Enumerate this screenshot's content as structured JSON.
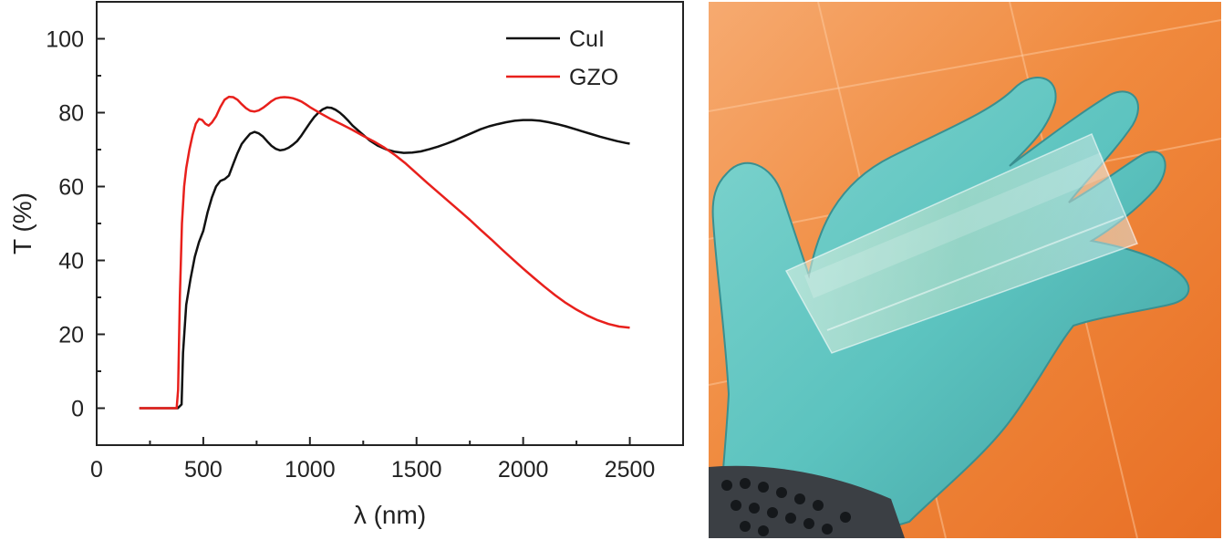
{
  "chart_data": {
    "type": "line",
    "xlabel": "λ (nm)",
    "ylabel": "T (%)",
    "xlim": [
      0,
      2750
    ],
    "ylim": [
      -10,
      110
    ],
    "x_ticks": [
      0,
      500,
      1000,
      1500,
      2000,
      2500
    ],
    "y_ticks": [
      0,
      20,
      40,
      60,
      80,
      100
    ],
    "grid": false,
    "legend_position": "top-right",
    "series": [
      {
        "name": "CuI",
        "color": "#111111",
        "points": [
          [
            200,
            0
          ],
          [
            380,
            0
          ],
          [
            398,
            1
          ],
          [
            405,
            15
          ],
          [
            420,
            28
          ],
          [
            440,
            35
          ],
          [
            460,
            41
          ],
          [
            480,
            45
          ],
          [
            500,
            48
          ],
          [
            520,
            53
          ],
          [
            540,
            57
          ],
          [
            560,
            60
          ],
          [
            580,
            61.5
          ],
          [
            600,
            62
          ],
          [
            620,
            63
          ],
          [
            640,
            66
          ],
          [
            660,
            69
          ],
          [
            680,
            71.5
          ],
          [
            700,
            73
          ],
          [
            720,
            74.3
          ],
          [
            740,
            74.8
          ],
          [
            760,
            74.4
          ],
          [
            780,
            73.5
          ],
          [
            800,
            72.2
          ],
          [
            820,
            71
          ],
          [
            840,
            70.2
          ],
          [
            860,
            69.8
          ],
          [
            880,
            70
          ],
          [
            900,
            70.5
          ],
          [
            920,
            71.3
          ],
          [
            940,
            72.3
          ],
          [
            960,
            73.8
          ],
          [
            980,
            75.5
          ],
          [
            1000,
            77.2
          ],
          [
            1020,
            78.8
          ],
          [
            1040,
            80
          ],
          [
            1060,
            80.9
          ],
          [
            1080,
            81.4
          ],
          [
            1100,
            81.3
          ],
          [
            1120,
            80.8
          ],
          [
            1140,
            80
          ],
          [
            1160,
            79
          ],
          [
            1180,
            77.8
          ],
          [
            1200,
            76.5
          ],
          [
            1240,
            74.5
          ],
          [
            1280,
            72.5
          ],
          [
            1320,
            71
          ],
          [
            1360,
            70
          ],
          [
            1400,
            69.4
          ],
          [
            1440,
            69.1
          ],
          [
            1480,
            69.2
          ],
          [
            1520,
            69.5
          ],
          [
            1560,
            70.1
          ],
          [
            1600,
            70.8
          ],
          [
            1640,
            71.6
          ],
          [
            1680,
            72.5
          ],
          [
            1720,
            73.5
          ],
          [
            1760,
            74.5
          ],
          [
            1800,
            75.5
          ],
          [
            1840,
            76.3
          ],
          [
            1880,
            76.9
          ],
          [
            1920,
            77.4
          ],
          [
            1960,
            77.8
          ],
          [
            2000,
            78
          ],
          [
            2040,
            78
          ],
          [
            2080,
            77.8
          ],
          [
            2120,
            77.4
          ],
          [
            2160,
            76.9
          ],
          [
            2200,
            76.3
          ],
          [
            2240,
            75.6
          ],
          [
            2280,
            74.9
          ],
          [
            2320,
            74.2
          ],
          [
            2360,
            73.5
          ],
          [
            2400,
            72.9
          ],
          [
            2440,
            72.3
          ],
          [
            2480,
            71.8
          ],
          [
            2500,
            71.6
          ]
        ]
      },
      {
        "name": "GZO",
        "color": "#e8201c",
        "points": [
          [
            200,
            0
          ],
          [
            375,
            0
          ],
          [
            382,
            5
          ],
          [
            390,
            30
          ],
          [
            400,
            50
          ],
          [
            410,
            60
          ],
          [
            420,
            65
          ],
          [
            435,
            70
          ],
          [
            450,
            74
          ],
          [
            465,
            77
          ],
          [
            480,
            78.3
          ],
          [
            495,
            78
          ],
          [
            510,
            77
          ],
          [
            525,
            76.5
          ],
          [
            540,
            77.3
          ],
          [
            560,
            79
          ],
          [
            580,
            81.5
          ],
          [
            600,
            83.5
          ],
          [
            620,
            84.3
          ],
          [
            640,
            84.2
          ],
          [
            660,
            83.5
          ],
          [
            680,
            82.3
          ],
          [
            700,
            81.2
          ],
          [
            720,
            80.5
          ],
          [
            740,
            80.3
          ],
          [
            760,
            80.6
          ],
          [
            780,
            81.3
          ],
          [
            800,
            82.2
          ],
          [
            820,
            83.1
          ],
          [
            840,
            83.8
          ],
          [
            860,
            84.1
          ],
          [
            880,
            84.2
          ],
          [
            900,
            84.1
          ],
          [
            920,
            83.9
          ],
          [
            940,
            83.5
          ],
          [
            960,
            83
          ],
          [
            980,
            82.3
          ],
          [
            1000,
            81.5
          ],
          [
            1050,
            79.8
          ],
          [
            1100,
            78.2
          ],
          [
            1150,
            76.8
          ],
          [
            1200,
            75.3
          ],
          [
            1250,
            73.7
          ],
          [
            1300,
            72.2
          ],
          [
            1350,
            70.5
          ],
          [
            1400,
            68.5
          ],
          [
            1450,
            66.2
          ],
          [
            1500,
            63.6
          ],
          [
            1550,
            61
          ],
          [
            1600,
            58.5
          ],
          [
            1650,
            56
          ],
          [
            1700,
            53.5
          ],
          [
            1750,
            51
          ],
          [
            1800,
            48.3
          ],
          [
            1850,
            45.7
          ],
          [
            1900,
            43
          ],
          [
            1950,
            40.4
          ],
          [
            2000,
            37.8
          ],
          [
            2050,
            35.3
          ],
          [
            2100,
            32.9
          ],
          [
            2150,
            30.6
          ],
          [
            2200,
            28.5
          ],
          [
            2250,
            26.7
          ],
          [
            2300,
            25.1
          ],
          [
            2350,
            23.8
          ],
          [
            2400,
            22.8
          ],
          [
            2450,
            22.1
          ],
          [
            2500,
            21.8
          ]
        ]
      }
    ]
  }
}
